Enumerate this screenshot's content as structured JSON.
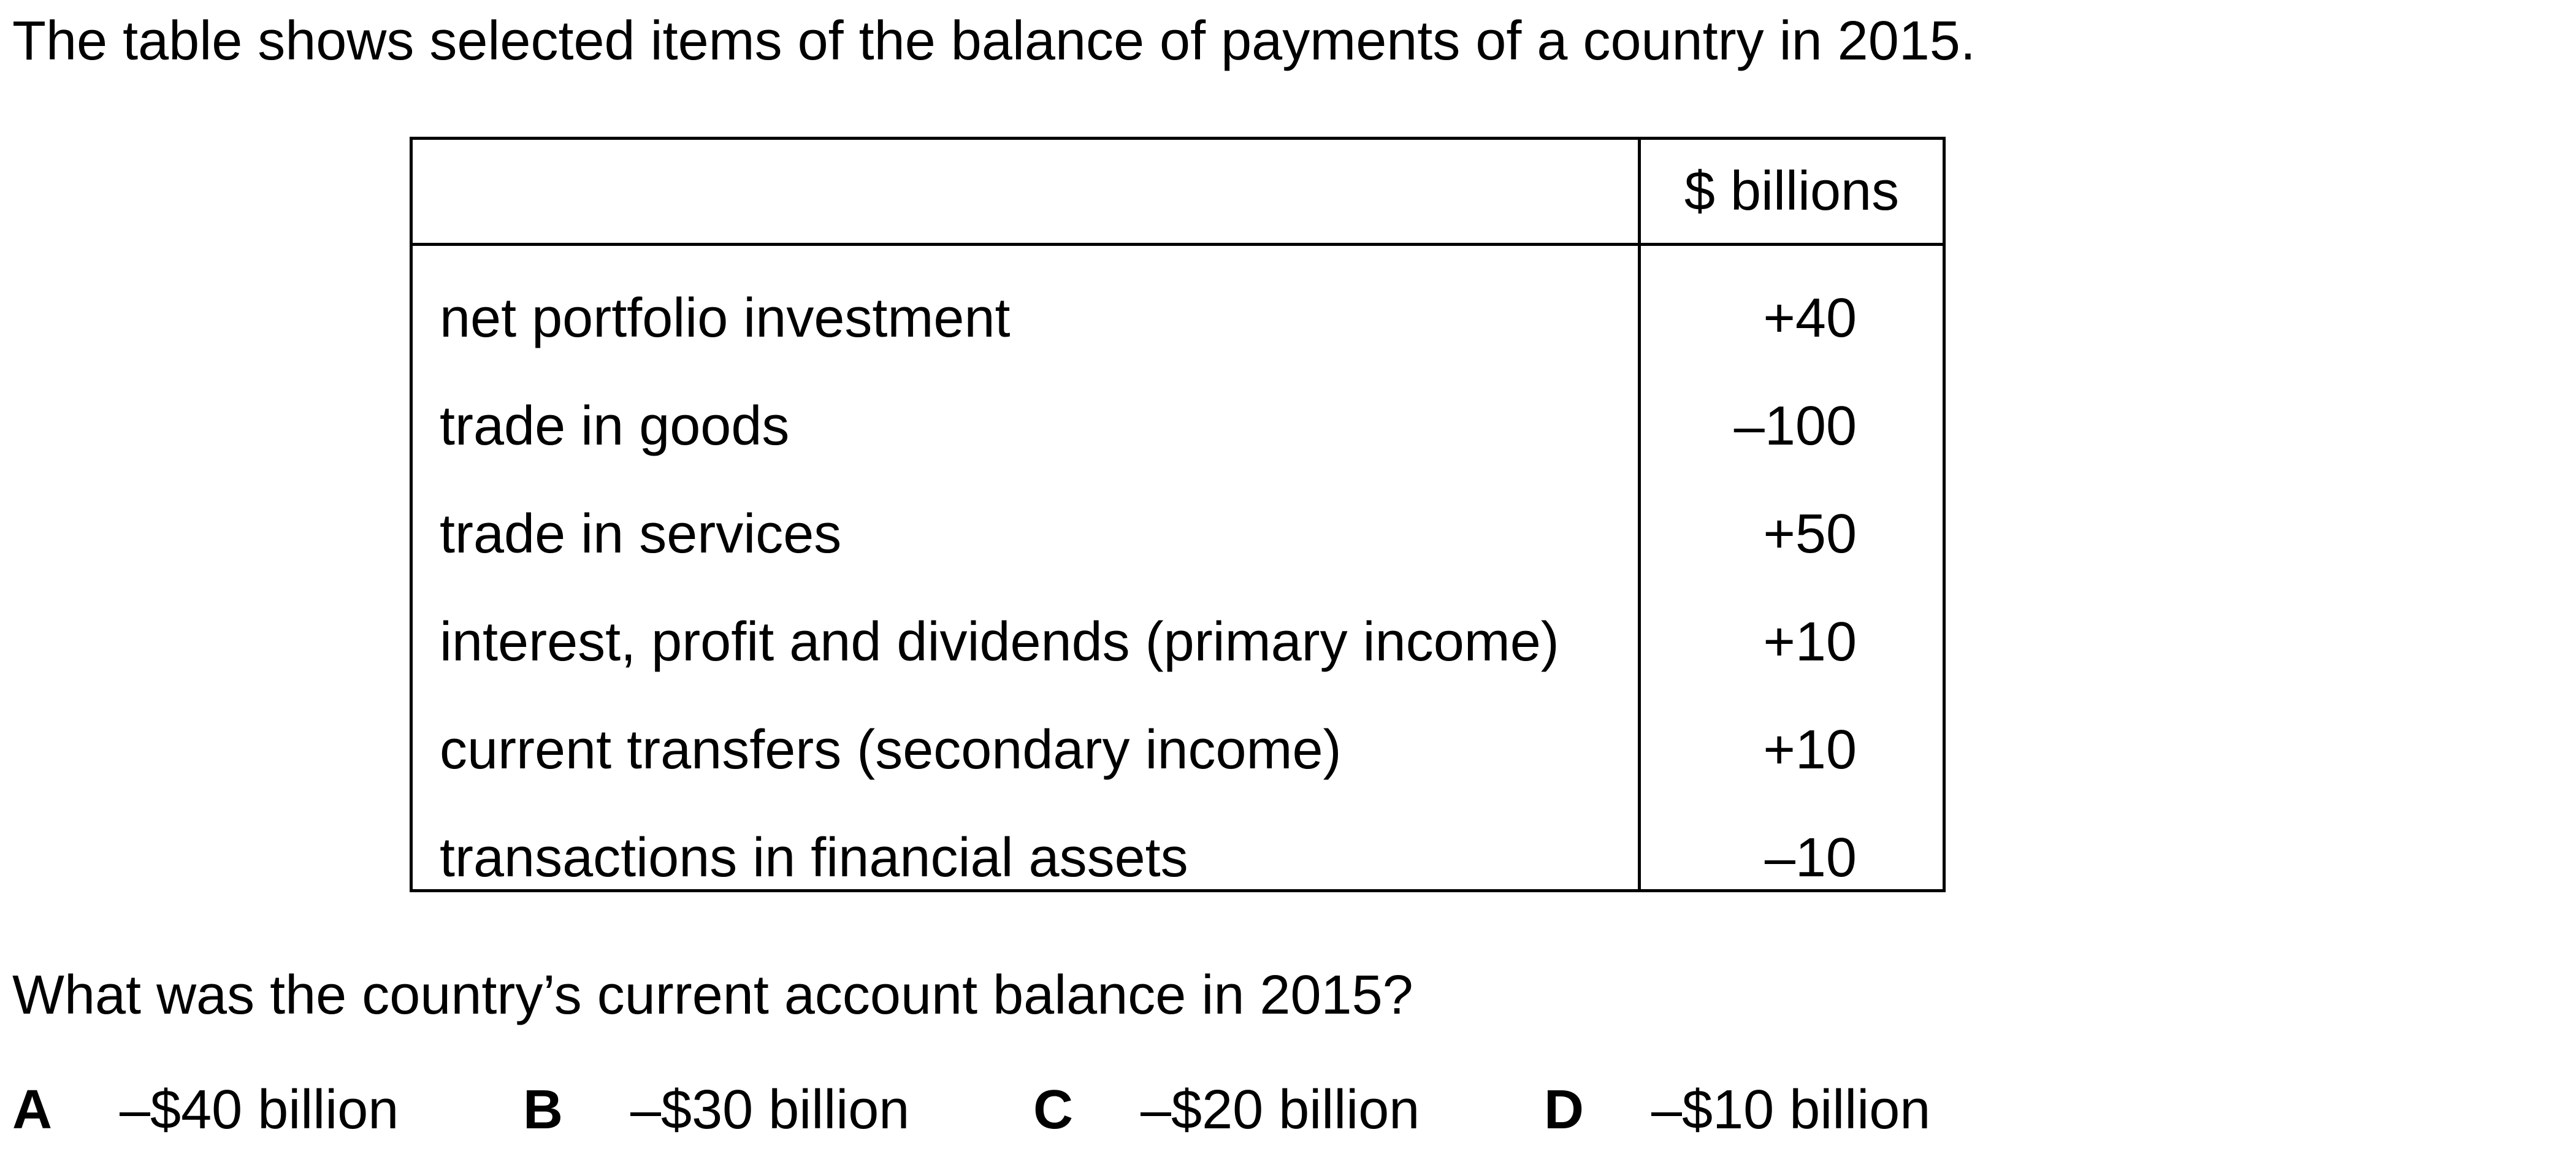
{
  "intro": "The table shows selected items of the balance of payments of a country in 2015.",
  "table": {
    "column_header": "$ billions",
    "rows": [
      {
        "label": "net portfolio investment",
        "value": "+40"
      },
      {
        "label": "trade in goods",
        "value": "–100"
      },
      {
        "label": "trade in services",
        "value": "+50"
      },
      {
        "label": "interest, profit and dividends (primary income)",
        "value": "+10"
      },
      {
        "label": "current transfers (secondary income)",
        "value": "+10"
      },
      {
        "label": "transactions in financial assets",
        "value": "–10"
      }
    ]
  },
  "question": "What was the country’s current account balance in 2015?",
  "options": [
    {
      "letter": "A",
      "text": "–$40 billion"
    },
    {
      "letter": "B",
      "text": "–$30 billion"
    },
    {
      "letter": "C",
      "text": "–$20 billion"
    },
    {
      "letter": "D",
      "text": "–$10 billion"
    }
  ]
}
